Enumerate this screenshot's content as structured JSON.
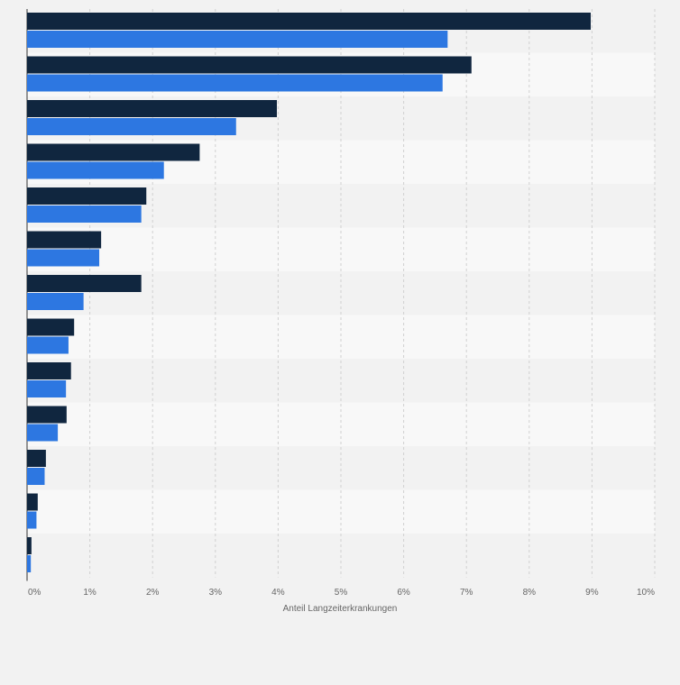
{
  "chart_data": {
    "type": "bar",
    "orientation": "horizontal",
    "categories": [
      "",
      "",
      "",
      "",
      "",
      "",
      "",
      "",
      "",
      "",
      "",
      "",
      ""
    ],
    "series": [
      {
        "values": [
          8.98,
          7.08,
          3.98,
          2.75,
          1.9,
          1.18,
          1.82,
          0.75,
          0.7,
          0.63,
          0.3,
          0.17,
          0.07
        ]
      },
      {
        "values": [
          6.7,
          6.62,
          3.33,
          2.18,
          1.82,
          1.15,
          0.9,
          0.66,
          0.62,
          0.49,
          0.28,
          0.15,
          0.06
        ]
      }
    ],
    "xlabel": "Anteil Langzeiterkrankungen",
    "xlim": [
      0,
      10
    ],
    "x_ticks": [
      "0%",
      "1%",
      "2%",
      "3%",
      "4%",
      "5%",
      "6%",
      "7%",
      "8%",
      "9%",
      "10%"
    ],
    "grid": true,
    "colors": [
      "#10263f",
      "#2d77e1"
    ],
    "background": "#f2f2f2",
    "band_colors": [
      "#f2f2f2",
      "#f8f8f8"
    ],
    "gridline_color": "#d0d0d0",
    "label_color": "#666666"
  }
}
